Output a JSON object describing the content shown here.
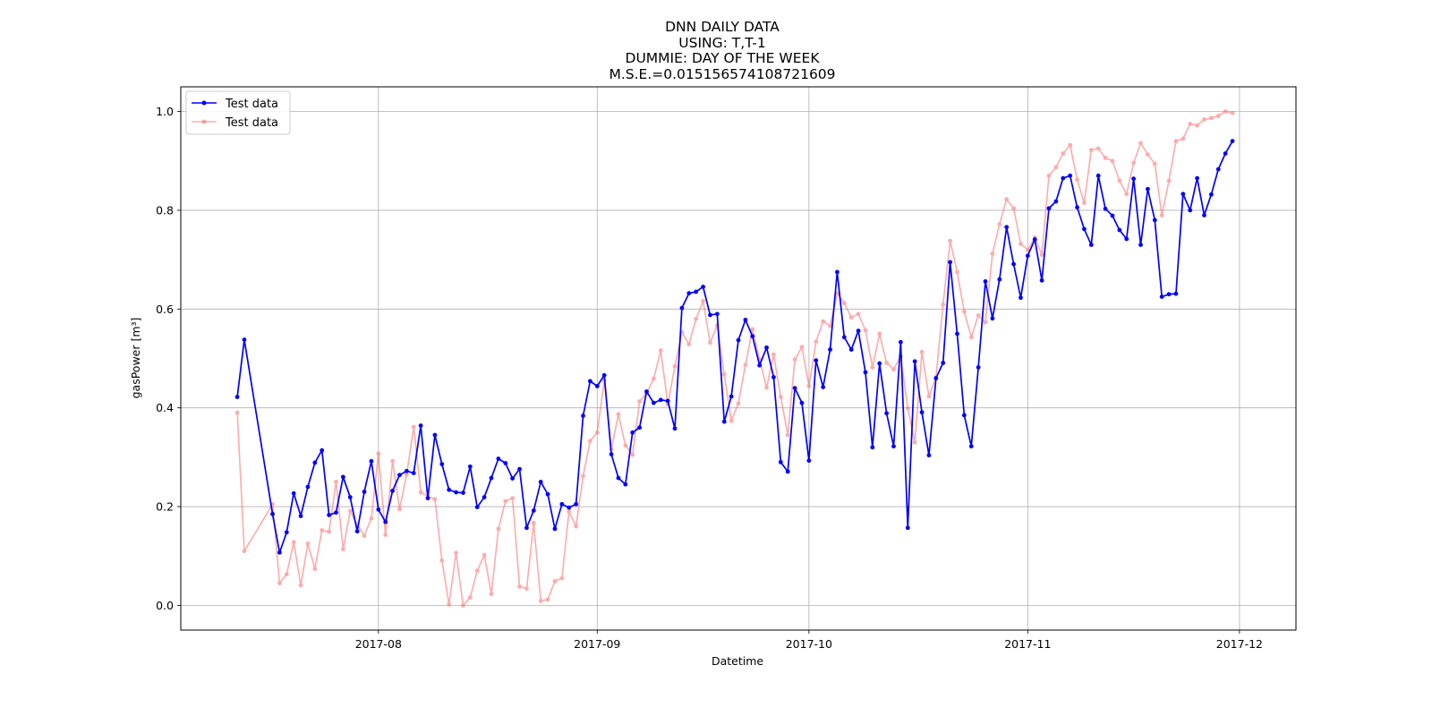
{
  "chart_data": {
    "type": "line",
    "title_lines": [
      "DNN DAILY DATA",
      "USING: T,T-1",
      "DUMMIE: DAY OF THE WEEK",
      "M.S.E.=0.015156574108721609"
    ],
    "xlabel": "Datetime",
    "ylabel": "gasPower [m³]",
    "x_start": "2017-07-12",
    "x_range": [
      "2017-07-04",
      "2017-12-09"
    ],
    "ylim": [
      -0.05,
      1.05
    ],
    "x_ticks": [
      {
        "date": "2017-08-01",
        "label": "2017-08"
      },
      {
        "date": "2017-09-01",
        "label": "2017-09"
      },
      {
        "date": "2017-10-01",
        "label": "2017-10"
      },
      {
        "date": "2017-11-01",
        "label": "2017-11"
      },
      {
        "date": "2017-12-01",
        "label": "2017-12"
      }
    ],
    "y_ticks": [
      {
        "value": 0.0,
        "label": "0.0"
      },
      {
        "value": 0.2,
        "label": "0.2"
      },
      {
        "value": 0.4,
        "label": "0.4"
      },
      {
        "value": 0.6,
        "label": "0.6"
      },
      {
        "value": 0.8,
        "label": "0.8"
      },
      {
        "value": 1.0,
        "label": "1.0"
      }
    ],
    "grid": true,
    "legend_position": "top-left",
    "series": [
      {
        "name": "Test data",
        "color": "#0000ff",
        "opacity": 1.0,
        "points": [
          [
            0,
            0.422
          ],
          [
            1,
            0.538
          ],
          [
            5,
            0.185
          ],
          [
            6,
            0.107
          ],
          [
            7,
            0.148
          ],
          [
            8,
            0.227
          ],
          [
            9,
            0.181
          ],
          [
            10,
            0.24
          ],
          [
            11,
            0.289
          ],
          [
            12,
            0.314
          ],
          [
            13,
            0.183
          ],
          [
            14,
            0.188
          ],
          [
            15,
            0.26
          ],
          [
            16,
            0.219
          ],
          [
            17,
            0.15
          ],
          [
            18,
            0.23
          ],
          [
            19,
            0.292
          ],
          [
            20,
            0.194
          ],
          [
            21,
            0.169
          ],
          [
            22,
            0.232
          ],
          [
            23,
            0.264
          ],
          [
            24,
            0.272
          ],
          [
            25,
            0.268
          ],
          [
            26,
            0.364
          ],
          [
            27,
            0.217
          ],
          [
            28,
            0.345
          ],
          [
            29,
            0.286
          ],
          [
            30,
            0.234
          ],
          [
            31,
            0.229
          ],
          [
            32,
            0.228
          ],
          [
            33,
            0.281
          ],
          [
            34,
            0.199
          ],
          [
            35,
            0.219
          ],
          [
            36,
            0.258
          ],
          [
            37,
            0.297
          ],
          [
            38,
            0.288
          ],
          [
            39,
            0.257
          ],
          [
            40,
            0.276
          ],
          [
            41,
            0.157
          ],
          [
            42,
            0.192
          ],
          [
            43,
            0.25
          ],
          [
            44,
            0.225
          ],
          [
            45,
            0.155
          ],
          [
            46,
            0.205
          ],
          [
            47,
            0.198
          ],
          [
            48,
            0.205
          ],
          [
            49,
            0.384
          ],
          [
            50,
            0.454
          ],
          [
            51,
            0.444
          ],
          [
            52,
            0.466
          ],
          [
            53,
            0.306
          ],
          [
            54,
            0.258
          ],
          [
            55,
            0.245
          ],
          [
            56,
            0.35
          ],
          [
            57,
            0.36
          ],
          [
            58,
            0.433
          ],
          [
            59,
            0.41
          ],
          [
            60,
            0.416
          ],
          [
            61,
            0.414
          ],
          [
            62,
            0.358
          ],
          [
            63,
            0.602
          ],
          [
            64,
            0.632
          ],
          [
            65,
            0.635
          ],
          [
            66,
            0.645
          ],
          [
            67,
            0.588
          ],
          [
            68,
            0.59
          ],
          [
            69,
            0.372
          ],
          [
            70,
            0.423
          ],
          [
            71,
            0.537
          ],
          [
            72,
            0.578
          ],
          [
            73,
            0.545
          ],
          [
            74,
            0.486
          ],
          [
            75,
            0.522
          ],
          [
            76,
            0.462
          ],
          [
            77,
            0.29
          ],
          [
            78,
            0.271
          ],
          [
            79,
            0.44
          ],
          [
            80,
            0.41
          ],
          [
            81,
            0.293
          ],
          [
            82,
            0.496
          ],
          [
            83,
            0.442
          ],
          [
            84,
            0.518
          ],
          [
            85,
            0.675
          ],
          [
            86,
            0.543
          ],
          [
            87,
            0.518
          ],
          [
            88,
            0.556
          ],
          [
            89,
            0.472
          ],
          [
            90,
            0.32
          ],
          [
            91,
            0.49
          ],
          [
            92,
            0.389
          ],
          [
            93,
            0.322
          ],
          [
            94,
            0.533
          ],
          [
            95,
            0.157
          ],
          [
            96,
            0.494
          ],
          [
            97,
            0.391
          ],
          [
            98,
            0.304
          ],
          [
            99,
            0.46
          ],
          [
            100,
            0.491
          ],
          [
            101,
            0.695
          ],
          [
            102,
            0.55
          ],
          [
            103,
            0.385
          ],
          [
            104,
            0.322
          ],
          [
            105,
            0.482
          ],
          [
            106,
            0.656
          ],
          [
            107,
            0.581
          ],
          [
            108,
            0.66
          ],
          [
            109,
            0.766
          ],
          [
            110,
            0.691
          ],
          [
            111,
            0.623
          ],
          [
            112,
            0.708
          ],
          [
            113,
            0.741
          ],
          [
            114,
            0.658
          ],
          [
            115,
            0.804
          ],
          [
            116,
            0.818
          ],
          [
            117,
            0.865
          ],
          [
            118,
            0.87
          ],
          [
            119,
            0.806
          ],
          [
            120,
            0.762
          ],
          [
            121,
            0.73
          ],
          [
            122,
            0.87
          ],
          [
            123,
            0.803
          ],
          [
            124,
            0.789
          ],
          [
            125,
            0.76
          ],
          [
            126,
            0.742
          ],
          [
            127,
            0.864
          ],
          [
            128,
            0.73
          ],
          [
            129,
            0.843
          ],
          [
            130,
            0.78
          ],
          [
            131,
            0.625
          ],
          [
            132,
            0.63
          ],
          [
            133,
            0.631
          ],
          [
            134,
            0.833
          ],
          [
            135,
            0.8
          ],
          [
            136,
            0.865
          ],
          [
            137,
            0.79
          ],
          [
            138,
            0.832
          ],
          [
            139,
            0.883
          ],
          [
            140,
            0.915
          ],
          [
            141,
            0.94
          ]
        ]
      },
      {
        "name": "Test data",
        "color": "#ff6666",
        "opacity": 0.55,
        "points": [
          [
            0,
            0.39
          ],
          [
            1,
            0.11
          ],
          [
            5,
            0.205
          ],
          [
            6,
            0.045
          ],
          [
            7,
            0.063
          ],
          [
            8,
            0.128
          ],
          [
            9,
            0.041
          ],
          [
            10,
            0.125
          ],
          [
            11,
            0.074
          ],
          [
            12,
            0.152
          ],
          [
            13,
            0.149
          ],
          [
            14,
            0.25
          ],
          [
            15,
            0.114
          ],
          [
            16,
            0.191
          ],
          [
            17,
            0.163
          ],
          [
            18,
            0.141
          ],
          [
            19,
            0.176
          ],
          [
            20,
            0.307
          ],
          [
            21,
            0.143
          ],
          [
            22,
            0.292
          ],
          [
            23,
            0.195
          ],
          [
            24,
            0.265
          ],
          [
            25,
            0.361
          ],
          [
            26,
            0.229
          ],
          [
            27,
            0.221
          ],
          [
            28,
            0.215
          ],
          [
            29,
            0.091
          ],
          [
            30,
            0.002
          ],
          [
            31,
            0.106
          ],
          [
            32,
            0.0
          ],
          [
            33,
            0.016
          ],
          [
            34,
            0.07
          ],
          [
            35,
            0.102
          ],
          [
            36,
            0.023
          ],
          [
            37,
            0.155
          ],
          [
            38,
            0.211
          ],
          [
            39,
            0.217
          ],
          [
            40,
            0.038
          ],
          [
            41,
            0.034
          ],
          [
            42,
            0.167
          ],
          [
            43,
            0.009
          ],
          [
            44,
            0.012
          ],
          [
            45,
            0.049
          ],
          [
            46,
            0.055
          ],
          [
            47,
            0.19
          ],
          [
            48,
            0.16
          ],
          [
            49,
            0.262
          ],
          [
            50,
            0.333
          ],
          [
            51,
            0.35
          ],
          [
            52,
            0.455
          ],
          [
            53,
            0.316
          ],
          [
            54,
            0.387
          ],
          [
            55,
            0.324
          ],
          [
            56,
            0.305
          ],
          [
            57,
            0.413
          ],
          [
            58,
            0.43
          ],
          [
            59,
            0.459
          ],
          [
            60,
            0.516
          ],
          [
            61,
            0.407
          ],
          [
            62,
            0.484
          ],
          [
            63,
            0.553
          ],
          [
            64,
            0.529
          ],
          [
            65,
            0.58
          ],
          [
            66,
            0.616
          ],
          [
            67,
            0.532
          ],
          [
            68,
            0.567
          ],
          [
            69,
            0.468
          ],
          [
            70,
            0.374
          ],
          [
            71,
            0.409
          ],
          [
            72,
            0.487
          ],
          [
            73,
            0.559
          ],
          [
            74,
            0.498
          ],
          [
            75,
            0.441
          ],
          [
            76,
            0.508
          ],
          [
            77,
            0.422
          ],
          [
            78,
            0.345
          ],
          [
            79,
            0.498
          ],
          [
            80,
            0.523
          ],
          [
            81,
            0.444
          ],
          [
            82,
            0.534
          ],
          [
            83,
            0.575
          ],
          [
            84,
            0.566
          ],
          [
            85,
            0.632
          ],
          [
            86,
            0.612
          ],
          [
            87,
            0.583
          ],
          [
            88,
            0.59
          ],
          [
            89,
            0.557
          ],
          [
            90,
            0.482
          ],
          [
            91,
            0.55
          ],
          [
            92,
            0.491
          ],
          [
            93,
            0.478
          ],
          [
            94,
            0.504
          ],
          [
            95,
            0.399
          ],
          [
            96,
            0.33
          ],
          [
            97,
            0.513
          ],
          [
            98,
            0.423
          ],
          [
            99,
            0.462
          ],
          [
            100,
            0.609
          ],
          [
            101,
            0.738
          ],
          [
            102,
            0.675
          ],
          [
            103,
            0.595
          ],
          [
            104,
            0.543
          ],
          [
            105,
            0.587
          ],
          [
            106,
            0.573
          ],
          [
            107,
            0.712
          ],
          [
            108,
            0.772
          ],
          [
            109,
            0.822
          ],
          [
            110,
            0.804
          ],
          [
            111,
            0.732
          ],
          [
            112,
            0.72
          ],
          [
            113,
            0.745
          ],
          [
            114,
            0.71
          ],
          [
            115,
            0.87
          ],
          [
            116,
            0.887
          ],
          [
            117,
            0.915
          ],
          [
            118,
            0.932
          ],
          [
            119,
            0.862
          ],
          [
            120,
            0.815
          ],
          [
            121,
            0.922
          ],
          [
            122,
            0.925
          ],
          [
            123,
            0.906
          ],
          [
            124,
            0.9
          ],
          [
            125,
            0.86
          ],
          [
            126,
            0.833
          ],
          [
            127,
            0.896
          ],
          [
            128,
            0.936
          ],
          [
            129,
            0.913
          ],
          [
            130,
            0.894
          ],
          [
            131,
            0.79
          ],
          [
            132,
            0.86
          ],
          [
            133,
            0.94
          ],
          [
            134,
            0.945
          ],
          [
            135,
            0.975
          ],
          [
            136,
            0.972
          ],
          [
            137,
            0.984
          ],
          [
            138,
            0.987
          ],
          [
            139,
            0.991
          ],
          [
            140,
            1.0
          ],
          [
            141,
            0.997
          ]
        ]
      }
    ]
  }
}
